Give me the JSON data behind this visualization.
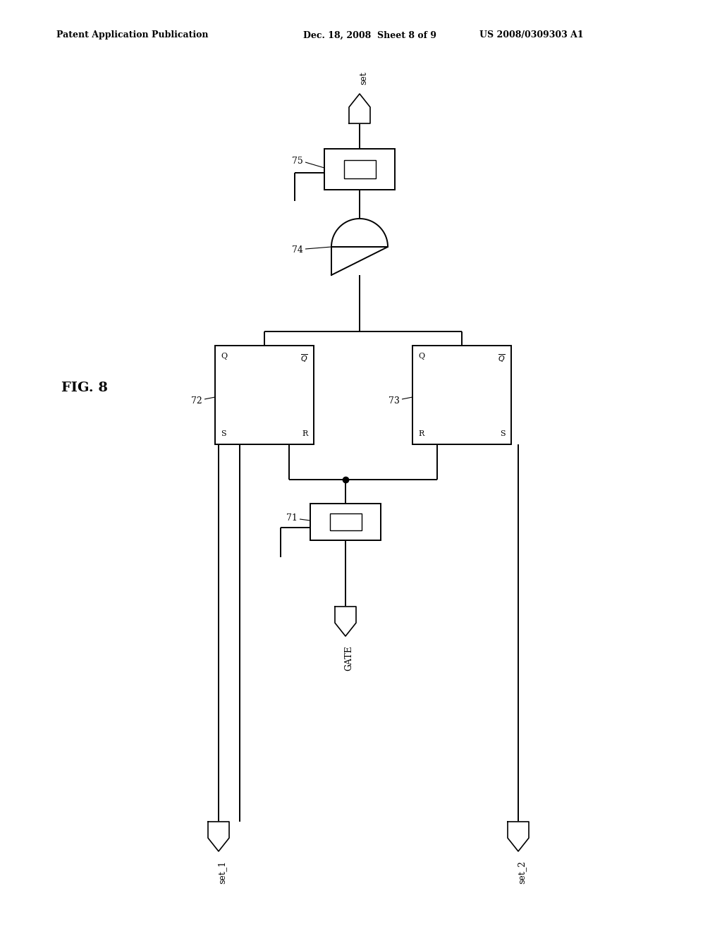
{
  "bg_color": "#ffffff",
  "line_color": "#000000",
  "header_left": "Patent Application Publication",
  "header_mid": "Dec. 18, 2008  Sheet 8 of 9",
  "header_right": "US 2008/0309303 A1",
  "fig_label": "FIG. 8",
  "lw": 1.4
}
